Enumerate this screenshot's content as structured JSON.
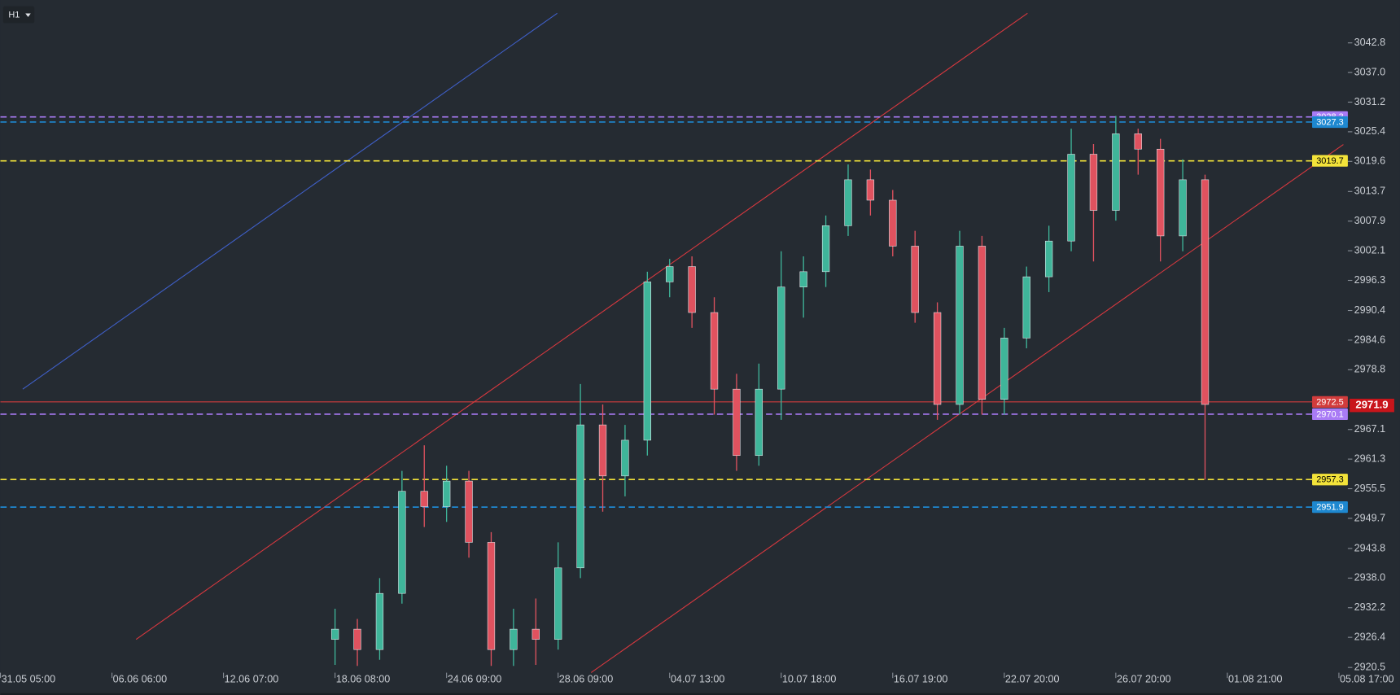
{
  "chart_data": {
    "type": "candlestick",
    "timeframe": "H1",
    "xlim": [
      0,
      60.4
    ],
    "ylim": [
      2919.3,
      3051.2
    ],
    "xticks": [
      {
        "value": 0,
        "label": "31.05 05:00"
      },
      {
        "value": 5,
        "label": "06.06 06:00"
      },
      {
        "value": 10,
        "label": "12.06 07:00"
      },
      {
        "value": 15,
        "label": "18.06 08:00"
      },
      {
        "value": 20,
        "label": "24.06 09:00"
      },
      {
        "value": 25,
        "label": "28.06 09:00"
      },
      {
        "value": 30,
        "label": "04.07 13:00"
      },
      {
        "value": 35,
        "label": "10.07 18:00"
      },
      {
        "value": 40,
        "label": "16.07 19:00"
      },
      {
        "value": 45,
        "label": "22.07 20:00"
      },
      {
        "value": 50,
        "label": "26.07 20:00"
      },
      {
        "value": 55,
        "label": "01.08 21:00"
      },
      {
        "value": 60,
        "label": "05.08 17:00"
      }
    ],
    "yticks": [
      3042.8,
      {
        "value": 3037,
        "label": "3037.0"
      },
      3031.2,
      3025.4,
      3019.6,
      3013.7,
      3007.9,
      3002.1,
      2996.3,
      2990.4,
      2984.6,
      2978.8,
      2967.1,
      2961.3,
      2955.5,
      2949.7,
      2943.8,
      {
        "value": 2938,
        "label": "2938.0"
      },
      2932.2,
      2926.4,
      2920.5
    ],
    "up_color": "#3fb59a",
    "down_color": "#e0525f",
    "x": [
      15,
      16,
      17,
      18,
      19,
      20,
      21,
      22,
      23,
      24,
      25,
      26,
      27,
      28,
      29,
      30,
      31,
      32,
      33,
      34,
      35,
      36,
      37,
      38,
      39,
      40,
      41,
      42,
      43,
      44,
      45,
      46,
      47,
      48,
      49,
      50,
      51,
      52,
      53,
      54
    ],
    "open": [
      2926,
      2928,
      2924,
      2935,
      2955,
      2952,
      2957,
      2945,
      2924,
      2928,
      2926,
      2940,
      2968,
      2958,
      2965,
      2996,
      2999,
      2990,
      2975,
      2962,
      2975,
      2995,
      2998,
      3007,
      3016,
      3012,
      3003,
      2990,
      2972,
      3003,
      2973,
      2985,
      2997,
      3004,
      3021,
      3010,
      3025,
      3022,
      3005,
      3016
    ],
    "high": [
      2932,
      2930,
      2938,
      2959,
      2964,
      2960,
      2959,
      2947,
      2932,
      2934,
      2945,
      2976,
      2972,
      2968,
      2998,
      3000.5,
      3001,
      2993,
      2978,
      2980,
      3002,
      3001,
      3009,
      3019,
      3018,
      3014,
      3006,
      2992,
      3006,
      3005,
      2987,
      2999,
      3007,
      3026,
      3023,
      3028.5,
      3026,
      3024,
      3020,
      3017
    ],
    "low": [
      2921,
      2920.8,
      2922,
      2933,
      2948,
      2949,
      2942,
      2920.8,
      2920.8,
      2921,
      2924,
      2938,
      2951,
      2954,
      2962,
      2993,
      2987,
      2970,
      2959,
      2960,
      2969,
      2989,
      2995,
      3005,
      3009,
      3001,
      2988,
      2969,
      2970,
      2970,
      2970,
      2983,
      2994,
      3002,
      3000,
      3008,
      3017,
      3000,
      3002,
      2957.3
    ],
    "close": [
      2928,
      2924,
      2935,
      2955,
      2952,
      2957,
      2945,
      2924,
      2928,
      2926,
      2940,
      2968,
      2958,
      2965,
      2996,
      2999,
      2990,
      2975,
      2962,
      2975,
      2995,
      2998,
      3007,
      3016,
      3012,
      3003,
      2990,
      2972,
      3003,
      2973,
      2985,
      2997,
      3004,
      3021,
      3010,
      3025,
      3022,
      3005,
      3016,
      2972
    ],
    "trendlines": [
      {
        "color": "#3f5fc8",
        "x": [
          1.0,
          24.96
        ],
        "y": [
          2975.0,
          3048.6
        ]
      },
      {
        "color": "#d8383f",
        "x": [
          6.08,
          46.04
        ],
        "y": [
          2926.0,
          3048.6
        ]
      },
      {
        "color": "#d8383f",
        "x": [
          26.48,
          60.2
        ],
        "y": [
          2919.5,
          3022.9
        ]
      }
    ],
    "levels": [
      {
        "value": 3028.3,
        "color": "#a97bf5",
        "text_color": "#ffffff",
        "dashed": true
      },
      {
        "value": 3027.3,
        "color": "#1e88d0",
        "text_color": "#ffffff",
        "dashed": true
      },
      {
        "value": 3019.7,
        "color": "#f3e33a",
        "text_color": "#000000",
        "dashed": true
      },
      {
        "value": 2972.5,
        "color": "#d23c3c",
        "text_color": "#ffffff",
        "dashed": false
      },
      {
        "value": 2970.1,
        "color": "#a97bf5",
        "text_color": "#ffffff",
        "dashed": true
      },
      {
        "value": 2957.3,
        "color": "#f3e33a",
        "text_color": "#000000",
        "dashed": true
      },
      {
        "value": 2951.9,
        "color": "#1e88d0",
        "text_color": "#ffffff",
        "dashed": true
      }
    ],
    "last_price": {
      "value": 2971.9,
      "color": "#c8151b"
    }
  }
}
